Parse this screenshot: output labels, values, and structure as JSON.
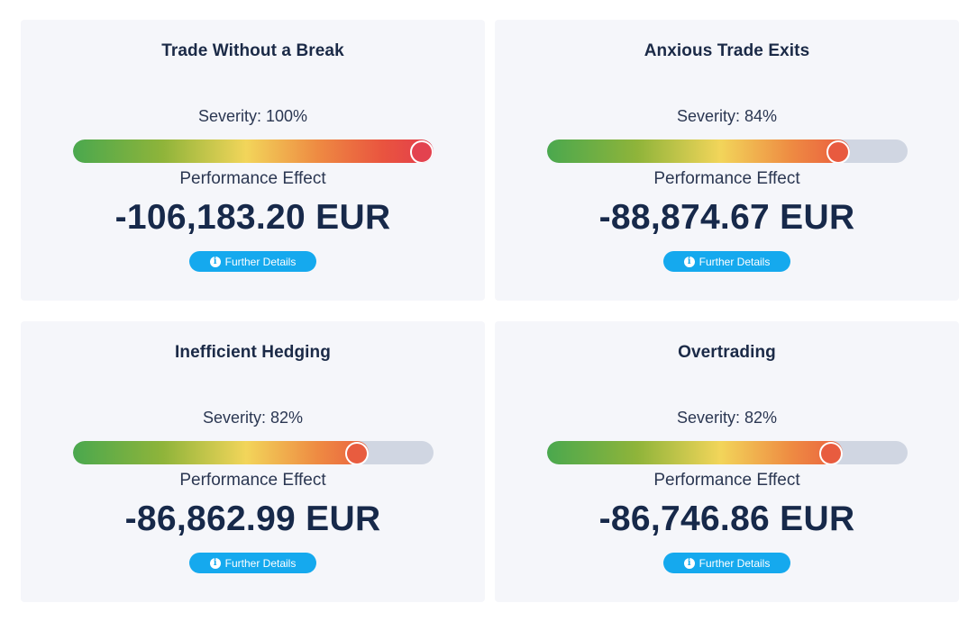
{
  "severity_prefix": "Severity: ",
  "severity_suffix": "%",
  "performance_label": "Performance Effect",
  "details_label": "Further Details",
  "info_icon_glyph": "i",
  "gradient_colors": [
    "#4aa84e",
    "#8fb43a",
    "#f2d55a",
    "#ee8a42",
    "#e9543f",
    "#e33d4d"
  ],
  "cards": [
    {
      "title": "Trade Without a Break",
      "severity": 100,
      "severity_text": "Severity: 100%",
      "performance_value": "-106,183.20 EUR",
      "knob_color": "#e3424f"
    },
    {
      "title": "Anxious Trade Exits",
      "severity": 84,
      "severity_text": "Severity: 84%",
      "performance_value": "-88,874.67 EUR",
      "knob_color": "#e85a3f"
    },
    {
      "title": "Inefficient Hedging",
      "severity": 82,
      "severity_text": "Severity: 82%",
      "performance_value": "-86,862.99 EUR",
      "knob_color": "#e85c3f"
    },
    {
      "title": "Overtrading",
      "severity": 82,
      "severity_text": "Severity: 82%",
      "performance_value": "-86,746.86 EUR",
      "knob_color": "#e85c3f"
    }
  ]
}
